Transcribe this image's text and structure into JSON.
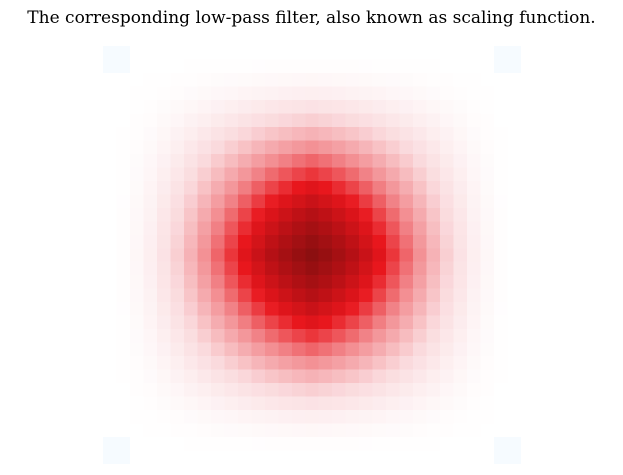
{
  "chart_data": {
    "type": "heatmap",
    "title": "The corresponding low-pass filter, also known as scaling function.",
    "xlabel": "",
    "ylabel": "",
    "grid": false,
    "axes_visible": false,
    "rows": 31,
    "cols": 31,
    "x": [
      0,
      1,
      2,
      3,
      4,
      5,
      6,
      7,
      8,
      9,
      10,
      11,
      12,
      13,
      14,
      15,
      16,
      17,
      18,
      19,
      20,
      21,
      22,
      23,
      24,
      25,
      26,
      27,
      28,
      29,
      30
    ],
    "y": [
      0,
      1,
      2,
      3,
      4,
      5,
      6,
      7,
      8,
      9,
      10,
      11,
      12,
      13,
      14,
      15,
      16,
      17,
      18,
      19,
      20,
      21,
      22,
      23,
      24,
      25,
      26,
      27,
      28,
      29,
      30
    ],
    "profile_1d": [
      0.0,
      0.01,
      0.04,
      0.08,
      0.14,
      0.21,
      0.29,
      0.38,
      0.47,
      0.56,
      0.65,
      0.74,
      0.82,
      0.89,
      0.95,
      1.0,
      0.95,
      0.89,
      0.82,
      0.74,
      0.65,
      0.56,
      0.47,
      0.38,
      0.29,
      0.21,
      0.14,
      0.08,
      0.04,
      0.01,
      0.0
    ],
    "value_rule": "z[row][col] = profile_1d[row] * profile_1d[col]",
    "zlim": [
      -0.05,
      1.0
    ],
    "colormap": {
      "stops": [
        {
          "v": -0.05,
          "color": "#f4faff"
        },
        {
          "v": 0.0,
          "color": "#ffffff"
        },
        {
          "v": 0.18,
          "color": "#fadadd"
        },
        {
          "v": 0.4,
          "color": "#f28a8e"
        },
        {
          "v": 0.62,
          "color": "#e8161c"
        },
        {
          "v": 0.82,
          "color": "#b51015"
        },
        {
          "v": 1.0,
          "color": "#8c0f10"
        }
      ]
    }
  }
}
